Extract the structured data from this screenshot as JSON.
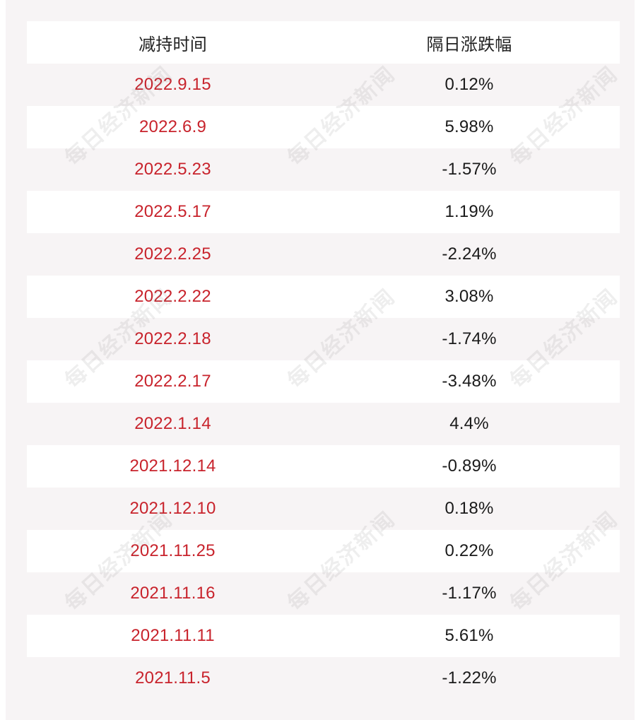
{
  "table": {
    "headers": [
      "减持时间",
      "隔日涨跌幅"
    ],
    "rows": [
      {
        "date": "2022.9.15",
        "change": "0.12%"
      },
      {
        "date": "2022.6.9",
        "change": "5.98%"
      },
      {
        "date": "2022.5.23",
        "change": "-1.57%"
      },
      {
        "date": "2022.5.17",
        "change": "1.19%"
      },
      {
        "date": "2022.2.25",
        "change": "-2.24%"
      },
      {
        "date": "2022.2.22",
        "change": "3.08%"
      },
      {
        "date": "2022.2.18",
        "change": "-1.74%"
      },
      {
        "date": "2022.2.17",
        "change": "-3.48%"
      },
      {
        "date": "2022.1.14",
        "change": "4.4%"
      },
      {
        "date": "2021.12.14",
        "change": "-0.89%"
      },
      {
        "date": "2021.12.10",
        "change": "0.18%"
      },
      {
        "date": "2021.11.25",
        "change": "0.22%"
      },
      {
        "date": "2021.11.16",
        "change": "-1.17%"
      },
      {
        "date": "2021.11.11",
        "change": "5.61%"
      },
      {
        "date": "2021.11.5",
        "change": "-1.22%"
      }
    ]
  },
  "watermark": {
    "text": "每日经济新闻"
  },
  "colors": {
    "date_text": "#c8232c",
    "change_text": "#1a1a1a",
    "header_text": "#222222",
    "panel_bg": "#f7f4f5",
    "row_bg": "#ffffff"
  }
}
